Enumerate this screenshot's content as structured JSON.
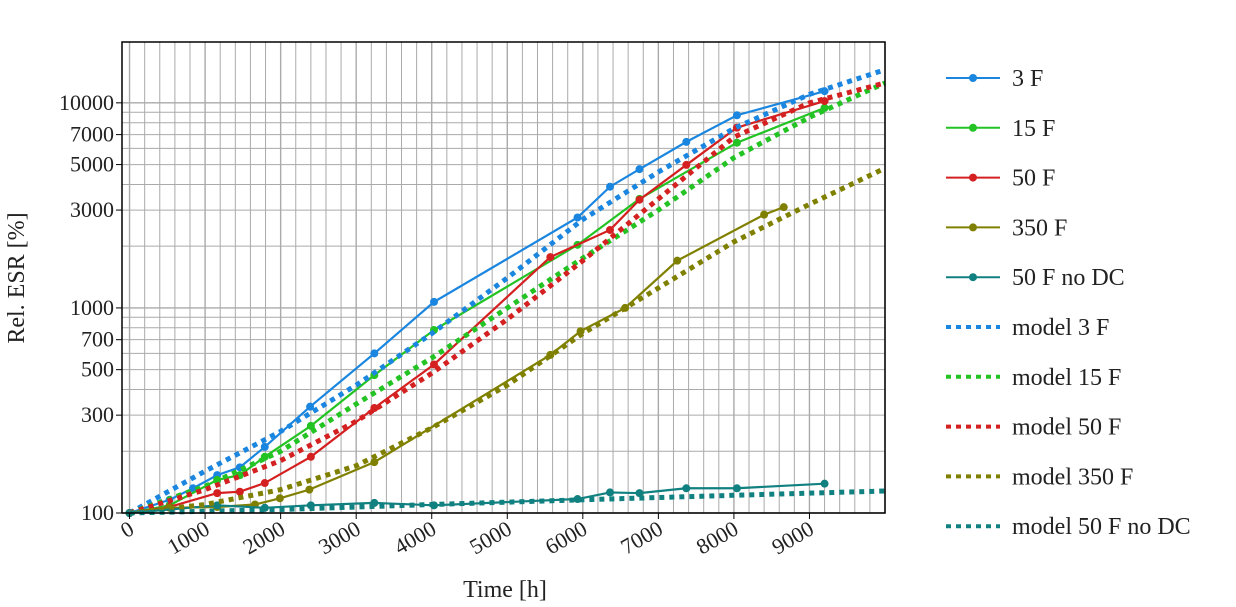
{
  "chart_data": {
    "type": "line",
    "title": "",
    "xlabel": "Time [h]",
    "ylabel": "Rel. ESR [%]",
    "xlim": [
      -100,
      10000
    ],
    "ylim": [
      100,
      19800
    ],
    "yscale": "log",
    "grid": true,
    "legend_placement": "right outside",
    "xticks": [
      0,
      1000,
      2000,
      3000,
      4000,
      5000,
      6000,
      7000,
      8000,
      9000
    ],
    "yticks": [
      100,
      300,
      500,
      700,
      1000,
      3000,
      5000,
      7000,
      10000
    ],
    "series": [
      {
        "name": "3 F",
        "style": "solid-marker",
        "color": "#1a86e0",
        "x": [
          0,
          530,
          840,
          1160,
          1460,
          1790,
          2390,
          3240,
          4030,
          5930,
          6360,
          6750,
          7370,
          8040,
          9200
        ],
        "y": [
          100,
          116,
          132,
          153,
          167,
          210,
          330,
          600,
          1070,
          2760,
          3900,
          4750,
          6450,
          8700,
          11400
        ]
      },
      {
        "name": "15 F",
        "style": "solid-marker",
        "color": "#22c322",
        "x": [
          0,
          530,
          1160,
          1460,
          1790,
          2400,
          3240,
          4030,
          5930,
          6750,
          8040,
          9200
        ],
        "y": [
          100,
          109,
          145,
          153,
          188,
          266,
          470,
          780,
          2030,
          3400,
          6390,
          9450
        ]
      },
      {
        "name": "50 F",
        "style": "solid-marker",
        "color": "#d42020",
        "x": [
          0,
          530,
          1160,
          1460,
          1790,
          2400,
          3240,
          4030,
          5570,
          6360,
          6750,
          7370,
          8040,
          9200
        ],
        "y": [
          100,
          107,
          125,
          127,
          140,
          188,
          325,
          530,
          1770,
          2400,
          3370,
          4980,
          7570,
          10200
        ]
      },
      {
        "name": "350 F",
        "style": "solid-marker",
        "color": "#808000",
        "x": [
          0,
          530,
          1160,
          1660,
          1990,
          2380,
          3240,
          5570,
          5970,
          6560,
          7250,
          8400,
          8660
        ],
        "y": [
          100,
          106,
          107,
          110,
          118,
          130,
          177,
          590,
          770,
          1000,
          1700,
          2850,
          3100
        ]
      },
      {
        "name": "50 F no DC",
        "style": "solid-marker",
        "color": "#108080",
        "x": [
          0,
          1160,
          1790,
          2400,
          3240,
          4030,
          5930,
          6360,
          6750,
          7370,
          8040,
          9200
        ],
        "y": [
          100,
          109,
          106,
          109,
          112,
          109,
          117,
          126,
          125,
          132,
          132,
          139
        ]
      },
      {
        "name": "model 3 F",
        "style": "dotted",
        "color": "#1a86e0",
        "x": [
          0,
          1000,
          2000,
          3000,
          4000,
          5000,
          6000,
          7000,
          8000,
          9000,
          10000
        ],
        "y": [
          100,
          160,
          250,
          420,
          750,
          1400,
          2700,
          4600,
          7500,
          11000,
          14500
        ]
      },
      {
        "name": "model 15 F",
        "style": "dotted",
        "color": "#22c322",
        "x": [
          0,
          1000,
          2000,
          3000,
          4000,
          5000,
          6000,
          7000,
          8000,
          9000,
          10000
        ],
        "y": [
          100,
          135,
          200,
          340,
          570,
          1000,
          1750,
          3000,
          5400,
          8500,
          12500
        ]
      },
      {
        "name": "model 50 F",
        "style": "dotted",
        "color": "#d42020",
        "x": [
          0,
          1000,
          2000,
          3000,
          4000,
          5000,
          6000,
          7000,
          8000,
          9000,
          10000
        ],
        "y": [
          100,
          130,
          180,
          280,
          480,
          880,
          1700,
          3400,
          6800,
          10000,
          12500
        ]
      },
      {
        "name": "model 350 F",
        "style": "dotted",
        "color": "#808000",
        "x": [
          0,
          1000,
          2000,
          3000,
          4000,
          5000,
          6000,
          7000,
          8000,
          9000,
          10000
        ],
        "y": [
          100,
          110,
          130,
          170,
          260,
          420,
          750,
          1250,
          2100,
          3200,
          4800
        ]
      },
      {
        "name": "model 50 F no DC",
        "style": "dotted",
        "color": "#108080",
        "x": [
          0,
          2000,
          4000,
          6000,
          8000,
          10000
        ],
        "y": [
          100,
          104,
          110,
          116,
          122,
          128
        ]
      }
    ]
  }
}
